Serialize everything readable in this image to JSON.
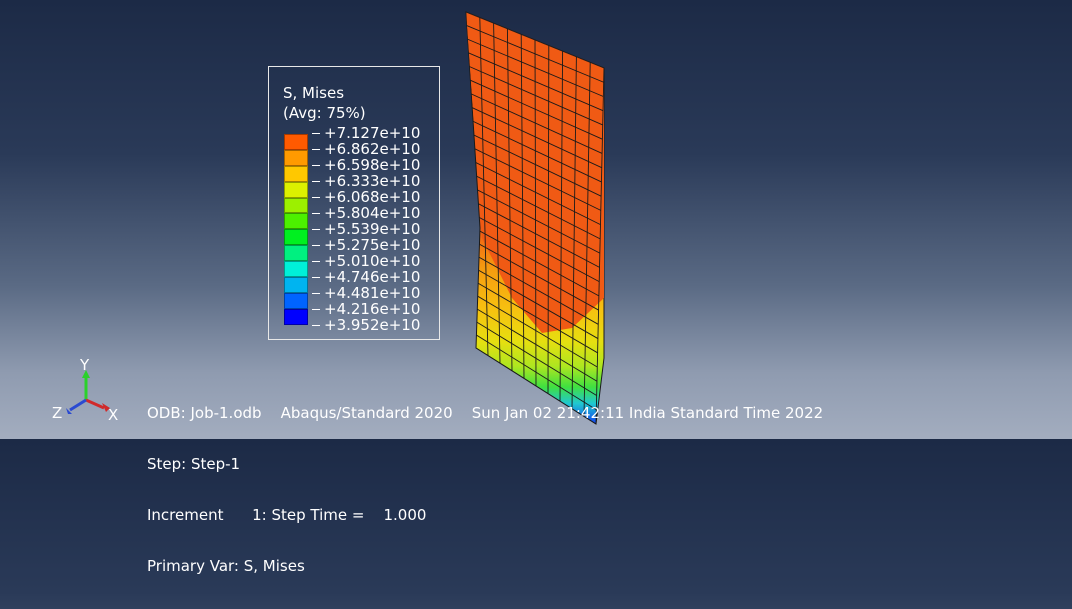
{
  "legend": {
    "title": "S, Mises",
    "subtitle": "(Avg: 75%)",
    "levels": [
      {
        "value": "+7.127e+10",
        "color": "#ff0000"
      },
      {
        "value": "+6.862e+10",
        "color": "#ff5a00"
      },
      {
        "value": "+6.598e+10",
        "color": "#ff9a00"
      },
      {
        "value": "+6.333e+10",
        "color": "#ffc800"
      },
      {
        "value": "+6.068e+10",
        "color": "#dcf000"
      },
      {
        "value": "+5.804e+10",
        "color": "#9cf000"
      },
      {
        "value": "+5.539e+10",
        "color": "#4cf000"
      },
      {
        "value": "+5.275e+10",
        "color": "#00f020"
      },
      {
        "value": "+5.010e+10",
        "color": "#00f080"
      },
      {
        "value": "+4.746e+10",
        "color": "#00f0d8"
      },
      {
        "value": "+4.481e+10",
        "color": "#00b4f0"
      },
      {
        "value": "+4.216e+10",
        "color": "#0064ff"
      },
      {
        "value": "+3.952e+10",
        "color": "#0000ff"
      }
    ]
  },
  "info": {
    "line1": "ODB: Job-1.odb    Abaqus/Standard 2020    Sun Jan 02 21:42:11 India Standard Time 2022",
    "line2": "Step: Step-1",
    "line3": "Increment      1: Step Time =    1.000",
    "line4": "Primary Var: S, Mises"
  },
  "triad": {
    "y": "Y",
    "x": "X",
    "z": "Z"
  },
  "colors": {
    "mesh_main": "#f05a14",
    "mesh_lines": "#1a1a1a"
  }
}
